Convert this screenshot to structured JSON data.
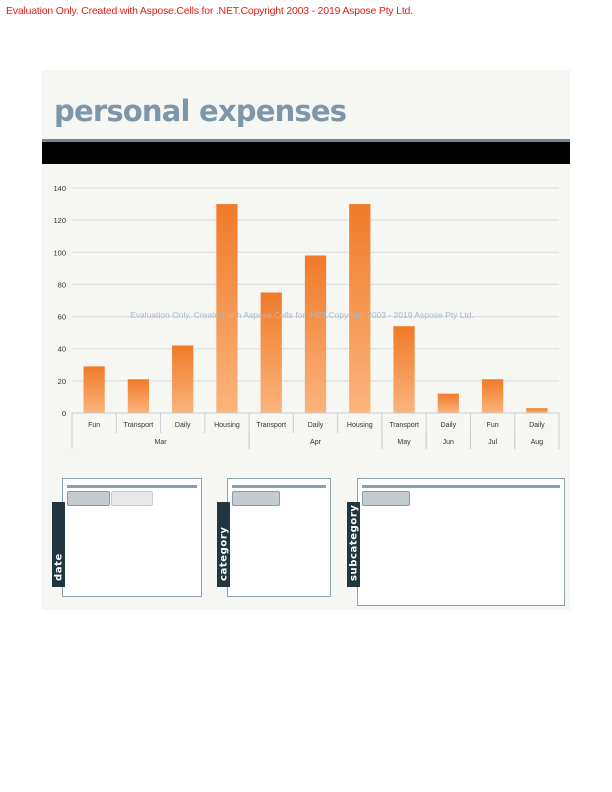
{
  "evaluation_notice": "Evaluation Only. Created with Aspose.Cells for .NET.Copyright 2003 - 2019 Aspose Pty Ltd.",
  "title": "personal expenses",
  "colors": {
    "bar_top": "#f07a28",
    "bar_bottom": "#fbb47c",
    "title": "#7d97a8",
    "tab": "#22363f"
  },
  "chart_data": {
    "type": "bar",
    "title": "",
    "xlabel": "",
    "ylabel": "",
    "ylim": [
      0,
      140
    ],
    "yticks": [
      0,
      20,
      40,
      60,
      80,
      100,
      120,
      140
    ],
    "grid": true,
    "legend": "none",
    "categories": [
      {
        "label": "Fun",
        "group": "Mar"
      },
      {
        "label": "Transport",
        "group": "Mar"
      },
      {
        "label": "Daily",
        "group": "Mar"
      },
      {
        "label": "Housing",
        "group": "Mar"
      },
      {
        "label": "Transport",
        "group": "Apr"
      },
      {
        "label": "Daily",
        "group": "Apr"
      },
      {
        "label": "Housing",
        "group": "Apr"
      },
      {
        "label": "Transport",
        "group": "May"
      },
      {
        "label": "Daily",
        "group": "Jun"
      },
      {
        "label": "Fun",
        "group": "Jul"
      },
      {
        "label": "Daily",
        "group": "Aug"
      }
    ],
    "groups": [
      "Mar",
      "Apr",
      "May",
      "Jun",
      "Jul",
      "Aug"
    ],
    "values": [
      29,
      21,
      42,
      130,
      75,
      98,
      130,
      54,
      12,
      21,
      3
    ],
    "watermark": "Evaluation Only. Created with Aspose.Cells for .NET.Copyright 2003 - 2019 Aspose Pty Ltd."
  },
  "slicers": [
    {
      "label": "date"
    },
    {
      "label": "category"
    },
    {
      "label": "subcategory"
    }
  ]
}
